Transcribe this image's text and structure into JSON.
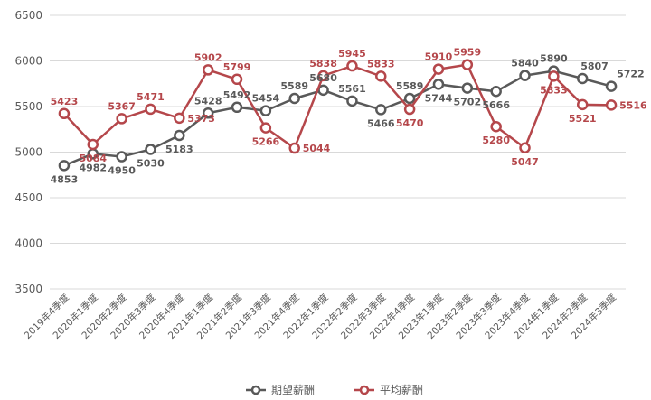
{
  "chart_data": {
    "type": "line",
    "title": "",
    "xlabel": "",
    "ylabel": "",
    "ylim": [
      3500,
      6500
    ],
    "yticks": [
      3500,
      4000,
      4500,
      5000,
      5500,
      6000,
      6500
    ],
    "grid": true,
    "legend_position": "bottom-center",
    "categories": [
      "2019年4季度",
      "2020年1季度",
      "2020年2季度",
      "2020年3季度",
      "2020年4季度",
      "2021年1季度",
      "2021年2季度",
      "2021年3季度",
      "2021年4季度",
      "2022年1季度",
      "2022年2季度",
      "2022年3季度",
      "2022年4季度",
      "2023年1季度",
      "2023年2季度",
      "2023年3季度",
      "2023年4季度",
      "2024年1季度",
      "2024年2季度",
      "2024年3季度"
    ],
    "series": [
      {
        "name": "期望薪酬",
        "color": "#595959",
        "values": [
          4853,
          4982,
          4950,
          5030,
          5183,
          5428,
          5492,
          5454,
          5589,
          5680,
          5561,
          5466,
          5589,
          5744,
          5702,
          5666,
          5840,
          5890,
          5807,
          5722
        ]
      },
      {
        "name": "平均薪酬",
        "color": "#b5474b",
        "values": [
          5423,
          5084,
          5367,
          5471,
          5373,
          5902,
          5799,
          5266,
          5044,
          5838,
          5945,
          5833,
          5470,
          5910,
          5959,
          5280,
          5047,
          5833,
          5521,
          5516
        ]
      }
    ]
  }
}
